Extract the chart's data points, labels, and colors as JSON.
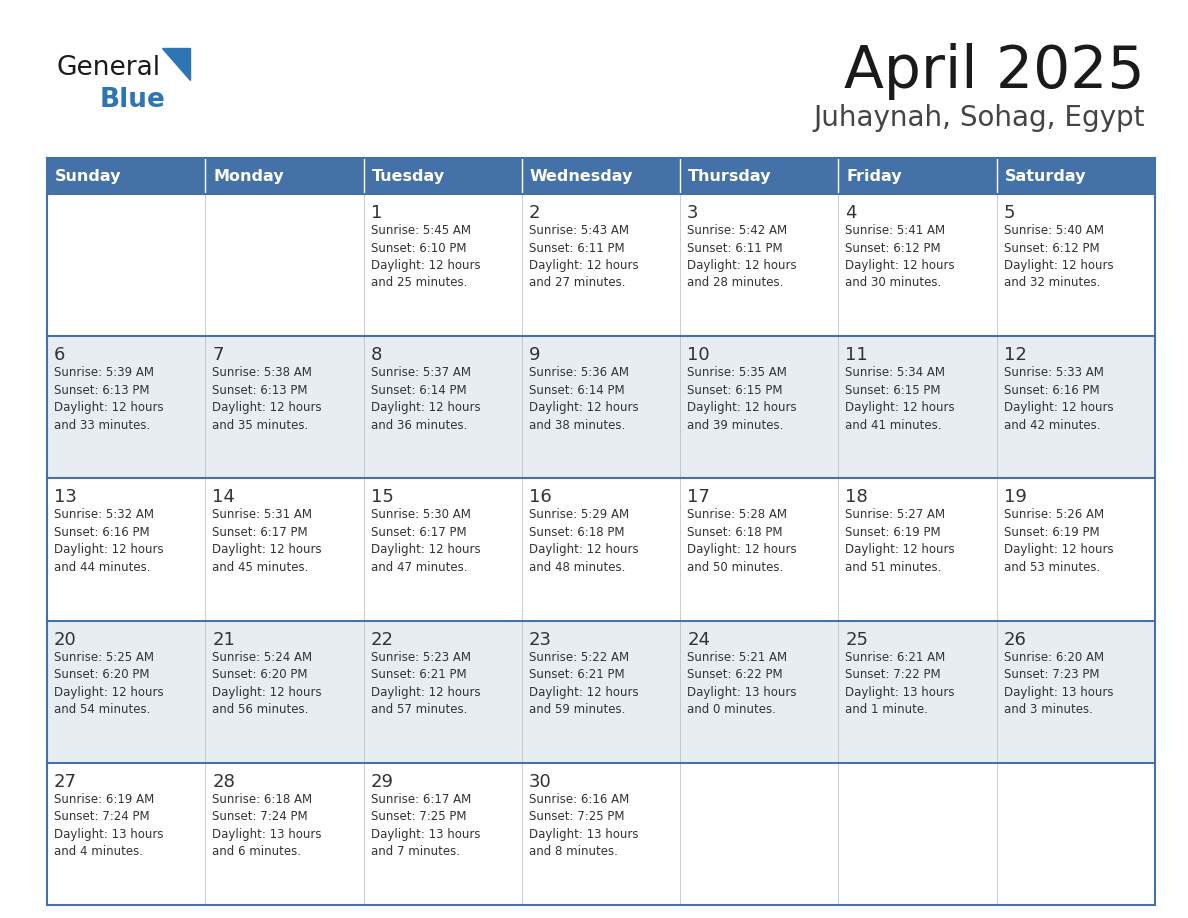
{
  "title": "April 2025",
  "subtitle": "Juhaynah, Sohag, Egypt",
  "header_bg_color": "#4472a8",
  "header_text_color": "#ffffff",
  "row_bg_even": "#ffffff",
  "row_bg_odd": "#e8edf2",
  "border_color": "#4472a8",
  "text_color": "#333333",
  "days_of_week": [
    "Sunday",
    "Monday",
    "Tuesday",
    "Wednesday",
    "Thursday",
    "Friday",
    "Saturday"
  ],
  "weeks": [
    [
      {
        "day": "",
        "info": ""
      },
      {
        "day": "",
        "info": ""
      },
      {
        "day": "1",
        "info": "Sunrise: 5:45 AM\nSunset: 6:10 PM\nDaylight: 12 hours\nand 25 minutes."
      },
      {
        "day": "2",
        "info": "Sunrise: 5:43 AM\nSunset: 6:11 PM\nDaylight: 12 hours\nand 27 minutes."
      },
      {
        "day": "3",
        "info": "Sunrise: 5:42 AM\nSunset: 6:11 PM\nDaylight: 12 hours\nand 28 minutes."
      },
      {
        "day": "4",
        "info": "Sunrise: 5:41 AM\nSunset: 6:12 PM\nDaylight: 12 hours\nand 30 minutes."
      },
      {
        "day": "5",
        "info": "Sunrise: 5:40 AM\nSunset: 6:12 PM\nDaylight: 12 hours\nand 32 minutes."
      }
    ],
    [
      {
        "day": "6",
        "info": "Sunrise: 5:39 AM\nSunset: 6:13 PM\nDaylight: 12 hours\nand 33 minutes."
      },
      {
        "day": "7",
        "info": "Sunrise: 5:38 AM\nSunset: 6:13 PM\nDaylight: 12 hours\nand 35 minutes."
      },
      {
        "day": "8",
        "info": "Sunrise: 5:37 AM\nSunset: 6:14 PM\nDaylight: 12 hours\nand 36 minutes."
      },
      {
        "day": "9",
        "info": "Sunrise: 5:36 AM\nSunset: 6:14 PM\nDaylight: 12 hours\nand 38 minutes."
      },
      {
        "day": "10",
        "info": "Sunrise: 5:35 AM\nSunset: 6:15 PM\nDaylight: 12 hours\nand 39 minutes."
      },
      {
        "day": "11",
        "info": "Sunrise: 5:34 AM\nSunset: 6:15 PM\nDaylight: 12 hours\nand 41 minutes."
      },
      {
        "day": "12",
        "info": "Sunrise: 5:33 AM\nSunset: 6:16 PM\nDaylight: 12 hours\nand 42 minutes."
      }
    ],
    [
      {
        "day": "13",
        "info": "Sunrise: 5:32 AM\nSunset: 6:16 PM\nDaylight: 12 hours\nand 44 minutes."
      },
      {
        "day": "14",
        "info": "Sunrise: 5:31 AM\nSunset: 6:17 PM\nDaylight: 12 hours\nand 45 minutes."
      },
      {
        "day": "15",
        "info": "Sunrise: 5:30 AM\nSunset: 6:17 PM\nDaylight: 12 hours\nand 47 minutes."
      },
      {
        "day": "16",
        "info": "Sunrise: 5:29 AM\nSunset: 6:18 PM\nDaylight: 12 hours\nand 48 minutes."
      },
      {
        "day": "17",
        "info": "Sunrise: 5:28 AM\nSunset: 6:18 PM\nDaylight: 12 hours\nand 50 minutes."
      },
      {
        "day": "18",
        "info": "Sunrise: 5:27 AM\nSunset: 6:19 PM\nDaylight: 12 hours\nand 51 minutes."
      },
      {
        "day": "19",
        "info": "Sunrise: 5:26 AM\nSunset: 6:19 PM\nDaylight: 12 hours\nand 53 minutes."
      }
    ],
    [
      {
        "day": "20",
        "info": "Sunrise: 5:25 AM\nSunset: 6:20 PM\nDaylight: 12 hours\nand 54 minutes."
      },
      {
        "day": "21",
        "info": "Sunrise: 5:24 AM\nSunset: 6:20 PM\nDaylight: 12 hours\nand 56 minutes."
      },
      {
        "day": "22",
        "info": "Sunrise: 5:23 AM\nSunset: 6:21 PM\nDaylight: 12 hours\nand 57 minutes."
      },
      {
        "day": "23",
        "info": "Sunrise: 5:22 AM\nSunset: 6:21 PM\nDaylight: 12 hours\nand 59 minutes."
      },
      {
        "day": "24",
        "info": "Sunrise: 5:21 AM\nSunset: 6:22 PM\nDaylight: 13 hours\nand 0 minutes."
      },
      {
        "day": "25",
        "info": "Sunrise: 6:21 AM\nSunset: 7:22 PM\nDaylight: 13 hours\nand 1 minute."
      },
      {
        "day": "26",
        "info": "Sunrise: 6:20 AM\nSunset: 7:23 PM\nDaylight: 13 hours\nand 3 minutes."
      }
    ],
    [
      {
        "day": "27",
        "info": "Sunrise: 6:19 AM\nSunset: 7:24 PM\nDaylight: 13 hours\nand 4 minutes."
      },
      {
        "day": "28",
        "info": "Sunrise: 6:18 AM\nSunset: 7:24 PM\nDaylight: 13 hours\nand 6 minutes."
      },
      {
        "day": "29",
        "info": "Sunrise: 6:17 AM\nSunset: 7:25 PM\nDaylight: 13 hours\nand 7 minutes."
      },
      {
        "day": "30",
        "info": "Sunrise: 6:16 AM\nSunset: 7:25 PM\nDaylight: 13 hours\nand 8 minutes."
      },
      {
        "day": "",
        "info": ""
      },
      {
        "day": "",
        "info": ""
      },
      {
        "day": "",
        "info": ""
      }
    ]
  ],
  "logo_general_color": "#1a1a1a",
  "logo_blue_color": "#2e75b6",
  "logo_triangle_color": "#2e75b6"
}
